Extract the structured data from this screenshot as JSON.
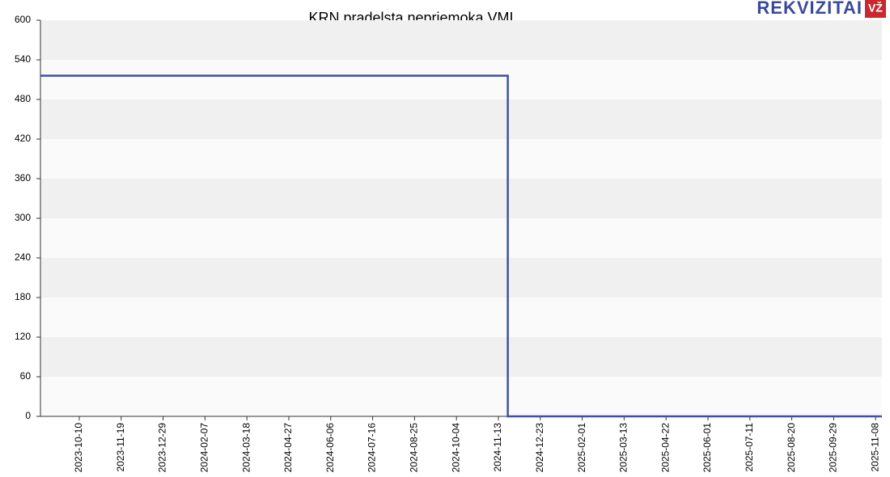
{
  "chart_data": {
    "type": "line",
    "title": "KRN pradelsta nepriemoka VMI",
    "logo": {
      "text": "REKVIZITAI",
      "badge": "VŽ"
    },
    "x": [
      "2023-09-03",
      "2024-11-22",
      "2024-11-22",
      "2025-11-14"
    ],
    "values": [
      516,
      516,
      0,
      0
    ],
    "color": "#3f51a0",
    "xlim": [
      "2023-09-03",
      "2025-11-14"
    ],
    "xticks": [
      "2023-10-10",
      "2023-11-19",
      "2023-12-29",
      "2024-02-07",
      "2024-03-18",
      "2024-04-27",
      "2024-06-06",
      "2024-07-16",
      "2024-08-25",
      "2024-10-04",
      "2024-11-13",
      "2024-12-23",
      "2025-02-01",
      "2025-03-13",
      "2025-04-22",
      "2025-06-01",
      "2025-07-11",
      "2025-08-20",
      "2025-09-29",
      "2025-11-08"
    ],
    "ylim": [
      0,
      600
    ],
    "yticks": [
      0,
      60,
      120,
      180,
      240,
      300,
      360,
      420,
      480,
      540,
      600
    ],
    "grid": true
  }
}
